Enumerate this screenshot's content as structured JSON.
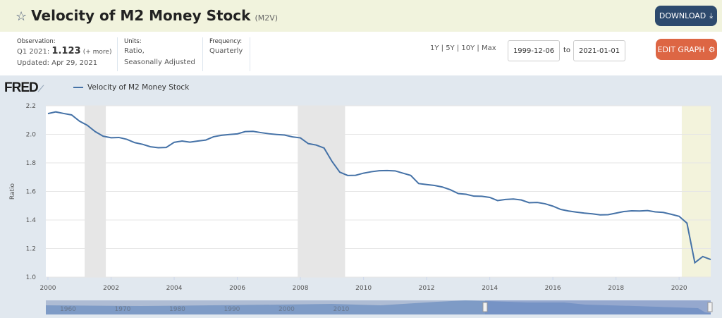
{
  "header": {
    "title": "Velocity of M2 Money Stock",
    "series_id": "(M2V)",
    "download_label": "DOWNLOAD",
    "star_icon": "star-outline-icon"
  },
  "info": {
    "observation_label": "Observation:",
    "observation_period": "Q1 2021:",
    "observation_value": "1.123",
    "more": "(+ more)",
    "updated": "Updated: Apr 29, 2021",
    "units_label": "Units:",
    "units_line1": "Ratio,",
    "units_line2": "Seasonally Adjusted",
    "frequency_label": "Frequency:",
    "frequency": "Quarterly"
  },
  "controls": {
    "ranges": "1Y | 5Y | 10Y | Max",
    "start_date": "1999-12-06",
    "to": "to",
    "end_date": "2021-01-01",
    "edit_label": "EDIT GRAPH"
  },
  "colors": {
    "line": "#4572a7",
    "recession": "#e6e6e6",
    "covid": "#f3f3dc",
    "download": "#2d4a6d",
    "edit": "#dd6644"
  },
  "chart_data": {
    "type": "line",
    "logo": "FRED",
    "series": [
      {
        "name": "Velocity of M2 Money Stock",
        "values": [
          2.145,
          2.157,
          2.146,
          2.136,
          2.092,
          2.063,
          2.019,
          1.987,
          1.976,
          1.978,
          1.965,
          1.942,
          1.93,
          1.913,
          1.906,
          1.908,
          1.944,
          1.953,
          1.945,
          1.953,
          1.96,
          1.983,
          1.993,
          1.999,
          2.003,
          2.019,
          2.021,
          2.012,
          2.004,
          1.999,
          1.995,
          1.982,
          1.975,
          1.935,
          1.925,
          1.904,
          1.81,
          1.735,
          1.712,
          1.713,
          1.728,
          1.738,
          1.745,
          1.746,
          1.744,
          1.728,
          1.712,
          1.655,
          1.648,
          1.642,
          1.631,
          1.612,
          1.585,
          1.58,
          1.567,
          1.566,
          1.558,
          1.536,
          1.544,
          1.547,
          1.54,
          1.521,
          1.523,
          1.514,
          1.497,
          1.474,
          1.463,
          1.455,
          1.448,
          1.443,
          1.436,
          1.437,
          1.448,
          1.459,
          1.464,
          1.463,
          1.466,
          1.457,
          1.453,
          1.44,
          1.426,
          1.378,
          1.101,
          1.144,
          1.123
        ]
      }
    ],
    "x_start": "2000-01-01",
    "x_end": "2021-01-01",
    "frequency": "quarterly",
    "ylabel": "Ratio",
    "ylim": [
      1.0,
      2.2
    ],
    "y_ticks": [
      "1.0",
      "1.2",
      "1.4",
      "1.6",
      "1.8",
      "2.0",
      "2.2"
    ],
    "x_ticks": [
      "2000",
      "2002",
      "2004",
      "2006",
      "2008",
      "2010",
      "2012",
      "2014",
      "2016",
      "2018",
      "2020"
    ],
    "recessions": [
      [
        "2001-03-01",
        "2001-11-01"
      ],
      [
        "2007-12-01",
        "2009-06-01"
      ],
      [
        "2020-02-01",
        "2021-01-01"
      ]
    ],
    "navigator_ticks": [
      "1960",
      "1970",
      "1980",
      "1990",
      "2000",
      "2010"
    ],
    "grid": true
  }
}
